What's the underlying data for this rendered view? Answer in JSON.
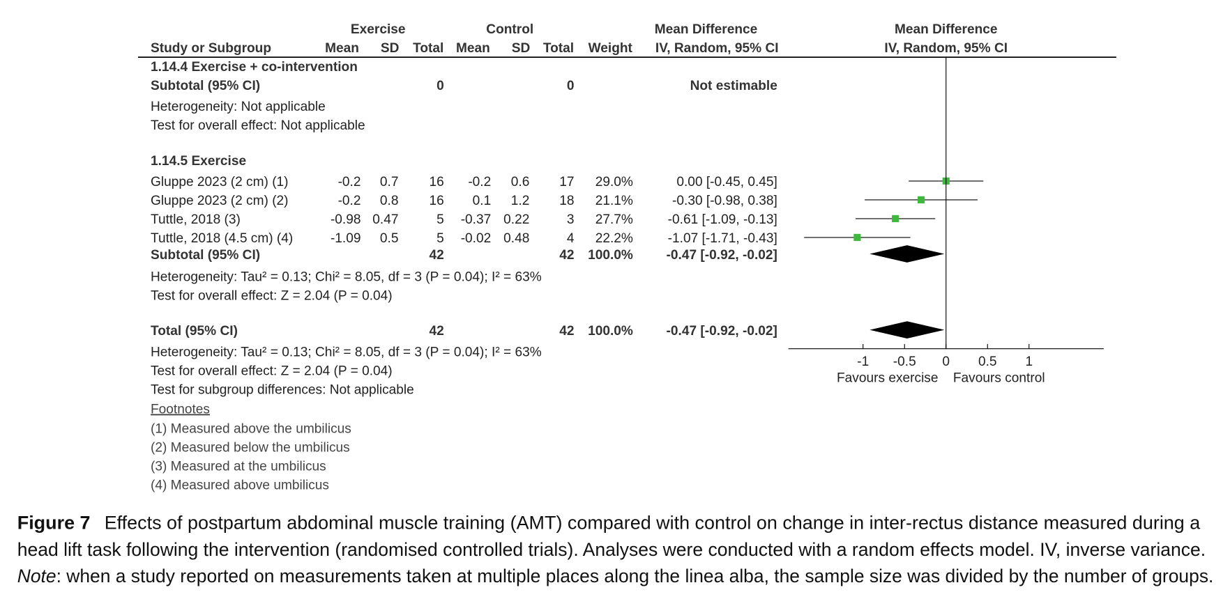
{
  "header": {
    "exercise": "Exercise",
    "control": "Control",
    "md_table": "Mean Difference",
    "md_plot": "Mean Difference",
    "columns": [
      "Study or Subgroup",
      "Mean",
      "SD",
      "Total",
      "Mean",
      "SD",
      "Total",
      "Weight",
      "IV, Random, 95% CI"
    ],
    "plot_method": "IV, Random, 95% CI"
  },
  "subgroups": [
    {
      "title": "1.14.4 Exercise + co-intervention",
      "studies": [],
      "subtotal": {
        "label": "Subtotal (95% CI)",
        "exp_total": "0",
        "ctl_total": "0",
        "ci_label": "Not estimable"
      },
      "heterogeneity": "Heterogeneity: Not applicable",
      "overall_effect": "Test for overall effect: Not applicable"
    },
    {
      "title": "1.14.5 Exercise",
      "studies": [
        {
          "name": "Gluppe 2023 (2 cm) (1)",
          "exp": [
            "-0.2",
            "0.7",
            "16"
          ],
          "ctl": [
            "-0.2",
            "0.6",
            "17"
          ],
          "weight": "29.0%",
          "ci_label": "0.00 [-0.45, 0.45]",
          "md": 0,
          "ci": [
            -0.45,
            0.45
          ]
        },
        {
          "name": "Gluppe 2023 (2 cm) (2)",
          "exp": [
            "-0.2",
            "0.8",
            "16"
          ],
          "ctl": [
            "0.1",
            "1.2",
            "18"
          ],
          "weight": "21.1%",
          "ci_label": "-0.30 [-0.98, 0.38]",
          "md": -0.3,
          "ci": [
            -0.98,
            0.38
          ]
        },
        {
          "name": "Tuttle, 2018 (3)",
          "exp": [
            "-0.98",
            "0.47",
            "5"
          ],
          "ctl": [
            "-0.37",
            "0.22",
            "3"
          ],
          "weight": "27.7%",
          "ci_label": "-0.61 [-1.09, -0.13]",
          "md": -0.61,
          "ci": [
            -1.09,
            -0.13
          ]
        },
        {
          "name": "Tuttle, 2018 (4.5 cm) (4)",
          "exp": [
            "-1.09",
            "0.5",
            "5"
          ],
          "ctl": [
            "-0.02",
            "0.48",
            "4"
          ],
          "weight": "22.2%",
          "ci_label": "-1.07 [-1.71, -0.43]",
          "md": -1.07,
          "ci": [
            -1.71,
            -0.43
          ]
        }
      ],
      "subtotal": {
        "label": "Subtotal (95% CI)",
        "exp_total": "42",
        "ctl_total": "42",
        "weight": "100.0%",
        "ci_label": "-0.47 [-0.92, -0.02]",
        "md": -0.47,
        "ci": [
          -0.92,
          -0.02
        ]
      },
      "heterogeneity": "Heterogeneity: Tau² = 0.13; Chi² = 8.05, df = 3 (P = 0.04); I² = 63%",
      "overall_effect": "Test for overall effect: Z = 2.04 (P = 0.04)"
    }
  ],
  "total": {
    "label": "Total (95% CI)",
    "exp_total": "42",
    "ctl_total": "42",
    "weight": "100.0%",
    "ci_label": "-0.47 [-0.92, -0.02]",
    "md": -0.47,
    "ci": [
      -0.92,
      -0.02
    ],
    "heterogeneity": "Heterogeneity: Tau² = 0.13; Chi² = 8.05, df = 3 (P = 0.04); I² = 63%",
    "overall_effect": "Test for overall effect: Z = 2.04 (P = 0.04)",
    "subgroup_differences": "Test for subgroup differences: Not applicable"
  },
  "plot": {
    "xlim": [
      -1.9,
      1.9
    ],
    "xticks": [
      -1,
      -0.5,
      0,
      0.5,
      1
    ],
    "favours_left": "Favours exercise",
    "favours_right": "Favours control",
    "marker_color": "#3db83d"
  },
  "footnotes": {
    "title": "Footnotes",
    "items": [
      "(1) Measured above the umbilicus",
      "(2) Measured below the umbilicus",
      "(3) Measured at the umbilicus",
      "(4) Measured above umbilicus"
    ]
  },
  "caption": {
    "label": "Figure 7",
    "line1": "Effects of postpartum abdominal muscle training (AMT) compared with control on change in inter-rectus distance measured during a",
    "line2": "head lift task following the intervention (randomised controlled trials). Analyses were conducted with a random effects model. IV, inverse variance.",
    "note_label": "Note",
    "line3": ": when a study reported on measurements taken at multiple places along the linea alba, the sample size was divided by the number of groups."
  }
}
